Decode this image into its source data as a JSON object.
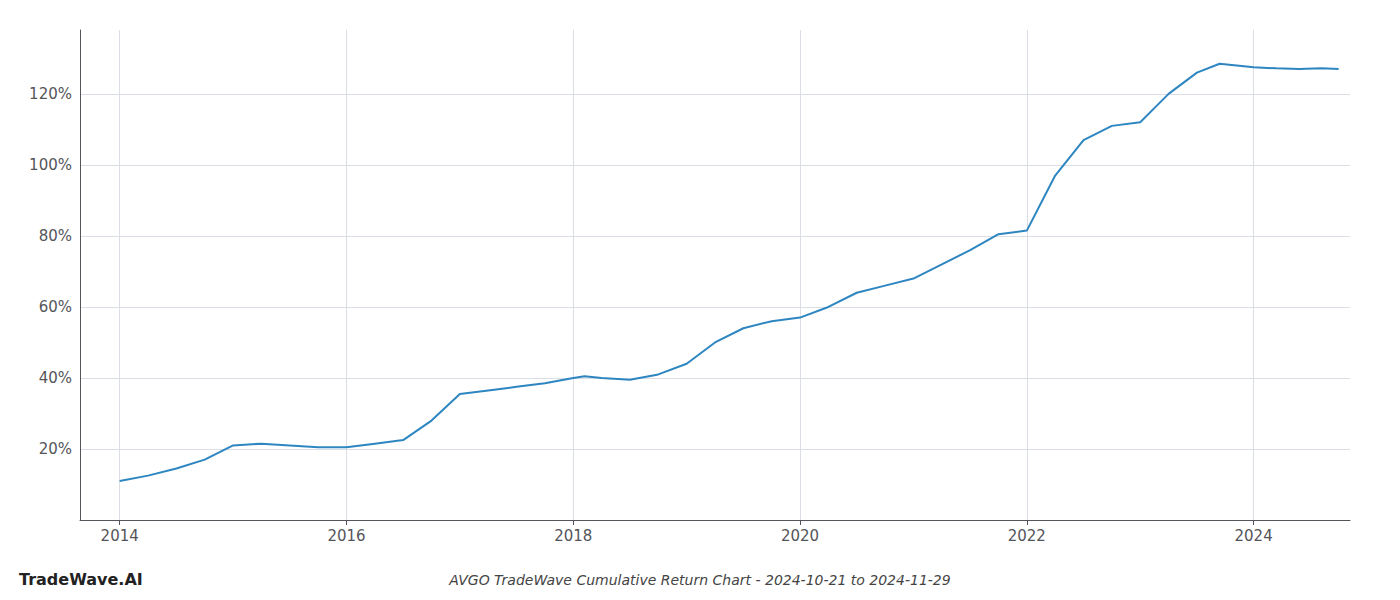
{
  "chart_data": {
    "type": "line",
    "title": "AVGO TradeWave Cumulative Return Chart - 2024-10-21 to 2024-11-29",
    "annotations": [
      "TradeWave.AI"
    ],
    "color": "#2E86C1",
    "grid": true,
    "x": [
      2014.0,
      2014.25,
      2014.5,
      2014.75,
      2015.0,
      2015.25,
      2015.5,
      2015.75,
      2016.0,
      2016.25,
      2016.5,
      2016.75,
      2017.0,
      2017.25,
      2017.5,
      2017.75,
      2018.0,
      2018.1,
      2018.25,
      2018.5,
      2018.75,
      2019.0,
      2019.25,
      2019.5,
      2019.75,
      2020.0,
      2020.25,
      2020.5,
      2020.75,
      2021.0,
      2021.25,
      2021.5,
      2021.75,
      2022.0,
      2022.25,
      2022.5,
      2022.75,
      2023.0,
      2023.25,
      2023.5,
      2023.7,
      2023.85,
      2024.0,
      2024.2,
      2024.4,
      2024.6,
      2024.75
    ],
    "values": [
      11.0,
      12.5,
      14.5,
      17.0,
      21.0,
      21.5,
      21.0,
      20.5,
      20.5,
      21.5,
      22.5,
      28.0,
      35.5,
      36.5,
      37.5,
      38.5,
      40.0,
      40.5,
      40.0,
      39.5,
      41.0,
      44.0,
      50.0,
      54.0,
      56.0,
      57.0,
      60.0,
      64.0,
      66.0,
      68.0,
      72.0,
      76.0,
      80.5,
      81.5,
      97.0,
      107.0,
      111.0,
      112.0,
      120.0,
      126.0,
      128.5,
      128.0,
      127.5,
      127.2,
      127.0,
      127.2,
      127.0
    ],
    "xlim": [
      2013.65,
      2024.85
    ],
    "xticks": [
      2014,
      2016,
      2018,
      2020,
      2022,
      2024
    ],
    "ylim": [
      0,
      138
    ],
    "yticks": [
      {
        "value": 20,
        "label": "20%"
      },
      {
        "value": 40,
        "label": "40%"
      },
      {
        "value": 60,
        "label": "60%"
      },
      {
        "value": 80,
        "label": "80%"
      },
      {
        "value": 100,
        "label": "100%"
      },
      {
        "value": 120,
        "label": "120%"
      }
    ]
  }
}
